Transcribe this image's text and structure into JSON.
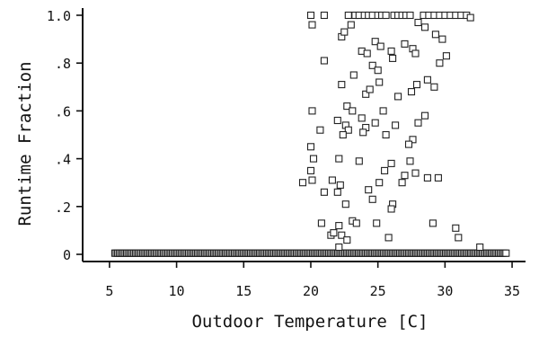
{
  "chart_data": {
    "type": "scatter",
    "xlabel": "Outdoor Temperature [C]",
    "ylabel": "Runtime Fraction",
    "xlim": [
      3,
      36
    ],
    "ylim": [
      -0.03,
      1.03
    ],
    "x_ticks": [
      5,
      10,
      15,
      20,
      25,
      30,
      35
    ],
    "x_tick_labels": [
      "5",
      "10",
      "15",
      "20",
      "25",
      "30",
      "35"
    ],
    "y_ticks": [
      0,
      0.2,
      0.4,
      0.6,
      0.8,
      1.0
    ],
    "y_tick_labels": [
      "0",
      ".2",
      ".4",
      ".6",
      ".8",
      "1.0"
    ],
    "grid": false,
    "marker": "open-square",
    "series": [
      {
        "points": [
          [
            20.0,
            1.0
          ],
          [
            20.1,
            0.96
          ],
          [
            21.0,
            1.0
          ],
          [
            22.8,
            1.0
          ],
          [
            23.3,
            1.0
          ],
          [
            23.6,
            1.0
          ],
          [
            24.0,
            1.0
          ],
          [
            24.3,
            1.0
          ],
          [
            24.6,
            1.0
          ],
          [
            25.0,
            1.0
          ],
          [
            25.3,
            1.0
          ],
          [
            25.6,
            1.0
          ],
          [
            26.2,
            1.0
          ],
          [
            26.5,
            1.0
          ],
          [
            26.8,
            1.0
          ],
          [
            27.1,
            1.0
          ],
          [
            27.4,
            1.0
          ],
          [
            28.4,
            1.0
          ],
          [
            28.8,
            1.0
          ],
          [
            29.2,
            1.0
          ],
          [
            29.6,
            1.0
          ],
          [
            30.0,
            1.0
          ],
          [
            30.4,
            1.0
          ],
          [
            30.8,
            1.0
          ],
          [
            31.2,
            1.0
          ],
          [
            31.6,
            1.0
          ],
          [
            31.9,
            0.99
          ],
          [
            22.3,
            0.91
          ],
          [
            22.5,
            0.93
          ],
          [
            23.0,
            0.96
          ],
          [
            24.8,
            0.89
          ],
          [
            25.2,
            0.87
          ],
          [
            26.0,
            0.85
          ],
          [
            28.0,
            0.97
          ],
          [
            28.5,
            0.95
          ],
          [
            29.3,
            0.92
          ],
          [
            29.8,
            0.9
          ],
          [
            27.0,
            0.88
          ],
          [
            23.8,
            0.85
          ],
          [
            24.2,
            0.84
          ],
          [
            21.0,
            0.81
          ],
          [
            24.6,
            0.79
          ],
          [
            26.1,
            0.82
          ],
          [
            27.6,
            0.86
          ],
          [
            27.8,
            0.84
          ],
          [
            29.6,
            0.8
          ],
          [
            30.1,
            0.83
          ],
          [
            25.0,
            0.77
          ],
          [
            23.2,
            0.75
          ],
          [
            22.3,
            0.71
          ],
          [
            24.1,
            0.67
          ],
          [
            24.4,
            0.69
          ],
          [
            25.1,
            0.72
          ],
          [
            27.5,
            0.68
          ],
          [
            27.9,
            0.71
          ],
          [
            28.7,
            0.73
          ],
          [
            29.2,
            0.7
          ],
          [
            26.5,
            0.66
          ],
          [
            20.1,
            0.6
          ],
          [
            22.7,
            0.62
          ],
          [
            23.1,
            0.6
          ],
          [
            23.8,
            0.57
          ],
          [
            25.4,
            0.6
          ],
          [
            28.5,
            0.58
          ],
          [
            22.0,
            0.56
          ],
          [
            22.6,
            0.54
          ],
          [
            22.8,
            0.52
          ],
          [
            24.1,
            0.53
          ],
          [
            24.8,
            0.55
          ],
          [
            26.3,
            0.54
          ],
          [
            28.0,
            0.55
          ],
          [
            20.7,
            0.52
          ],
          [
            22.4,
            0.5
          ],
          [
            23.9,
            0.51
          ],
          [
            25.6,
            0.5
          ],
          [
            27.6,
            0.48
          ],
          [
            27.3,
            0.46
          ],
          [
            20.0,
            0.45
          ],
          [
            20.2,
            0.4
          ],
          [
            22.1,
            0.4
          ],
          [
            23.6,
            0.39
          ],
          [
            26.0,
            0.38
          ],
          [
            27.4,
            0.39
          ],
          [
            20.0,
            0.35
          ],
          [
            25.5,
            0.35
          ],
          [
            27.8,
            0.34
          ],
          [
            27.0,
            0.33
          ],
          [
            28.7,
            0.32
          ],
          [
            29.5,
            0.32
          ],
          [
            19.4,
            0.3
          ],
          [
            20.1,
            0.31
          ],
          [
            21.6,
            0.31
          ],
          [
            22.2,
            0.29
          ],
          [
            24.3,
            0.27
          ],
          [
            26.8,
            0.3
          ],
          [
            25.1,
            0.3
          ],
          [
            21.0,
            0.26
          ],
          [
            22.0,
            0.26
          ],
          [
            22.6,
            0.21
          ],
          [
            24.6,
            0.23
          ],
          [
            26.1,
            0.21
          ],
          [
            26.0,
            0.19
          ],
          [
            20.8,
            0.13
          ],
          [
            22.1,
            0.12
          ],
          [
            23.1,
            0.14
          ],
          [
            23.4,
            0.13
          ],
          [
            24.9,
            0.13
          ],
          [
            29.1,
            0.13
          ],
          [
            30.8,
            0.11
          ],
          [
            21.5,
            0.08
          ],
          [
            21.7,
            0.09
          ],
          [
            22.3,
            0.08
          ],
          [
            22.7,
            0.06
          ],
          [
            25.8,
            0.07
          ],
          [
            31.0,
            0.07
          ],
          [
            32.6,
            0.03
          ],
          [
            22.1,
            0.03
          ]
        ],
        "zero_band": {
          "y": 0.005,
          "x_from": 5.4,
          "x_to": 34.6,
          "x_step": 0.11
        }
      }
    ]
  }
}
